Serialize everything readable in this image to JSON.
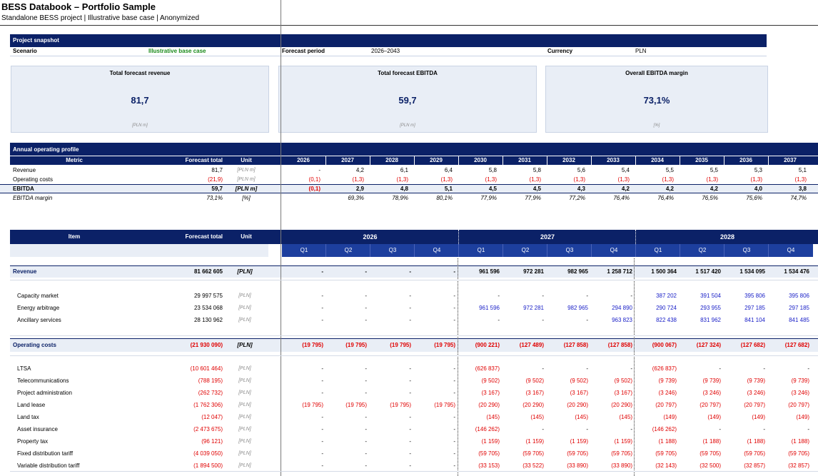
{
  "title": "BESS Databook – Portfolio Sample",
  "subtitle": "Standalone BESS project | Illustrative base case | Anonymized",
  "snapshot": {
    "header": "Project snapshot",
    "scenario_label": "Scenario",
    "scenario_value": "Illustrative base case",
    "period_label": "Forecast period",
    "period_value": "2026–2043",
    "currency_label": "Currency",
    "currency_value": "PLN"
  },
  "kpis": [
    {
      "title": "Total forecast revenue",
      "value": "81,7",
      "unit": "[PLN m]"
    },
    {
      "title": "Total forecast EBITDA",
      "value": "59,7",
      "unit": "[PLN m]"
    },
    {
      "title": "Overall EBITDA margin",
      "value": "73,1%",
      "unit": "[%]"
    }
  ],
  "annual": {
    "header": "Annual operating profile",
    "col_metric": "Metric",
    "col_total": "Forecast total",
    "col_unit": "Unit",
    "years": [
      "2026",
      "2027",
      "2028",
      "2029",
      "2030",
      "2031",
      "2032",
      "2033",
      "2034",
      "2035",
      "2036",
      "2037"
    ],
    "rows": [
      {
        "label": "Revenue",
        "total": "81,7",
        "unit": "[PLN m]",
        "values": [
          "-",
          "4,2",
          "6,1",
          "6,4",
          "5,8",
          "5,8",
          "5,6",
          "5,4",
          "5,5",
          "5,5",
          "5,3",
          "5,1"
        ]
      },
      {
        "label": "Operating costs",
        "total": "(21,9)",
        "unit": "[PLN m]",
        "values": [
          "(0,1)",
          "(1,3)",
          "(1,3)",
          "(1,3)",
          "(1,3)",
          "(1,3)",
          "(1,3)",
          "(1,3)",
          "(1,3)",
          "(1,3)",
          "(1,3)",
          "(1,3)"
        ]
      },
      {
        "label": "EBITDA",
        "total": "59,7",
        "unit": "[PLN m]",
        "values": [
          "(0,1)",
          "2,9",
          "4,8",
          "5,1",
          "4,5",
          "4,5",
          "4,3",
          "4,2",
          "4,2",
          "4,2",
          "4,0",
          "3,8"
        ]
      },
      {
        "label": "EBITDA margin",
        "total": "73,1%",
        "unit": "[%]",
        "values": [
          "",
          "69,3%",
          "78,9%",
          "80,1%",
          "77,9%",
          "77,9%",
          "77,2%",
          "76,4%",
          "76,4%",
          "76,5%",
          "75,6%",
          "74,7%"
        ]
      }
    ]
  },
  "quarterly": {
    "col_item": "Item",
    "col_total": "Forecast total",
    "col_unit": "Unit",
    "years": [
      "2026",
      "2027",
      "2028"
    ],
    "quarters": [
      "Q1",
      "Q2",
      "Q3",
      "Q4",
      "Q1",
      "Q2",
      "Q3",
      "Q4",
      "Q1",
      "Q2",
      "Q3",
      "Q4"
    ],
    "revenue": {
      "label": "Revenue",
      "total": "81 662 605",
      "unit": "[PLN]",
      "values": [
        "-",
        "-",
        "-",
        "-",
        "961 596",
        "972 281",
        "982 965",
        "1 258 712",
        "1 500 364",
        "1 517 420",
        "1 534 095",
        "1 534 476"
      ]
    },
    "revenue_rows": [
      {
        "label": "Capacity market",
        "total": "29 997 575",
        "unit": "[PLN]",
        "values": [
          "-",
          "-",
          "-",
          "-",
          "-",
          "-",
          "-",
          "-",
          "387 202",
          "391 504",
          "395 806",
          "395 806"
        ]
      },
      {
        "label": "Energy arbitrage",
        "total": "23 534 068",
        "unit": "[PLN]",
        "values": [
          "-",
          "-",
          "-",
          "-",
          "961 596",
          "972 281",
          "982 965",
          "294 890",
          "290 724",
          "293 955",
          "297 185",
          "297 185"
        ]
      },
      {
        "label": "Ancillary services",
        "total": "28 130 962",
        "unit": "[PLN]",
        "values": [
          "-",
          "-",
          "-",
          "-",
          "-",
          "-",
          "-",
          "963 823",
          "822 438",
          "831 962",
          "841 104",
          "841 485"
        ]
      }
    ],
    "opex": {
      "label": "Operating costs",
      "total": "(21 930 090)",
      "unit": "[PLN]",
      "values": [
        "(19 795)",
        "(19 795)",
        "(19 795)",
        "(19 795)",
        "(900 221)",
        "(127 489)",
        "(127 858)",
        "(127 858)",
        "(900 067)",
        "(127 324)",
        "(127 682)",
        "(127 682)"
      ]
    },
    "opex_rows": [
      {
        "label": "LTSA",
        "total": "(10 601 464)",
        "unit": "[PLN]",
        "values": [
          "-",
          "-",
          "-",
          "-",
          "(626 837)",
          "-",
          "-",
          "-",
          "(626 837)",
          "-",
          "-",
          "-"
        ]
      },
      {
        "label": "Telecommunications",
        "total": "(788 195)",
        "unit": "[PLN]",
        "values": [
          "-",
          "-",
          "-",
          "-",
          "(9 502)",
          "(9 502)",
          "(9 502)",
          "(9 502)",
          "(9 739)",
          "(9 739)",
          "(9 739)",
          "(9 739)"
        ]
      },
      {
        "label": "Project administration",
        "total": "(262 732)",
        "unit": "[PLN]",
        "values": [
          "-",
          "-",
          "-",
          "-",
          "(3 167)",
          "(3 167)",
          "(3 167)",
          "(3 167)",
          "(3 246)",
          "(3 246)",
          "(3 246)",
          "(3 246)"
        ]
      },
      {
        "label": "Land lease",
        "total": "(1 762 306)",
        "unit": "[PLN]",
        "values": [
          "(19 795)",
          "(19 795)",
          "(19 795)",
          "(19 795)",
          "(20 290)",
          "(20 290)",
          "(20 290)",
          "(20 290)",
          "(20 797)",
          "(20 797)",
          "(20 797)",
          "(20 797)"
        ]
      },
      {
        "label": "Land tax",
        "total": "(12 047)",
        "unit": "[PLN]",
        "values": [
          "-",
          "-",
          "-",
          "-",
          "(145)",
          "(145)",
          "(145)",
          "(145)",
          "(149)",
          "(149)",
          "(149)",
          "(149)"
        ]
      },
      {
        "label": "Asset insurance",
        "total": "(2 473 675)",
        "unit": "[PLN]",
        "values": [
          "-",
          "-",
          "-",
          "-",
          "(146 262)",
          "-",
          "-",
          "-",
          "(146 262)",
          "-",
          "-",
          "-"
        ]
      },
      {
        "label": "Property tax",
        "total": "(96 121)",
        "unit": "[PLN]",
        "values": [
          "-",
          "-",
          "-",
          "-",
          "(1 159)",
          "(1 159)",
          "(1 159)",
          "(1 159)",
          "(1 188)",
          "(1 188)",
          "(1 188)",
          "(1 188)"
        ]
      },
      {
        "label": "Fixed distribution tariff",
        "total": "(4 039 050)",
        "unit": "[PLN]",
        "values": [
          "-",
          "-",
          "-",
          "-",
          "(59 705)",
          "(59 705)",
          "(59 705)",
          "(59 705)",
          "(59 705)",
          "(59 705)",
          "(59 705)",
          "(59 705)"
        ]
      },
      {
        "label": "Variable distribution tariff",
        "total": "(1 894 500)",
        "unit": "[PLN]",
        "values": [
          "-",
          "-",
          "-",
          "-",
          "(33 153)",
          "(33 522)",
          "(33 890)",
          "(33 890)",
          "(32 143)",
          "(32 500)",
          "(32 857)",
          "(32 857)"
        ]
      }
    ]
  }
}
